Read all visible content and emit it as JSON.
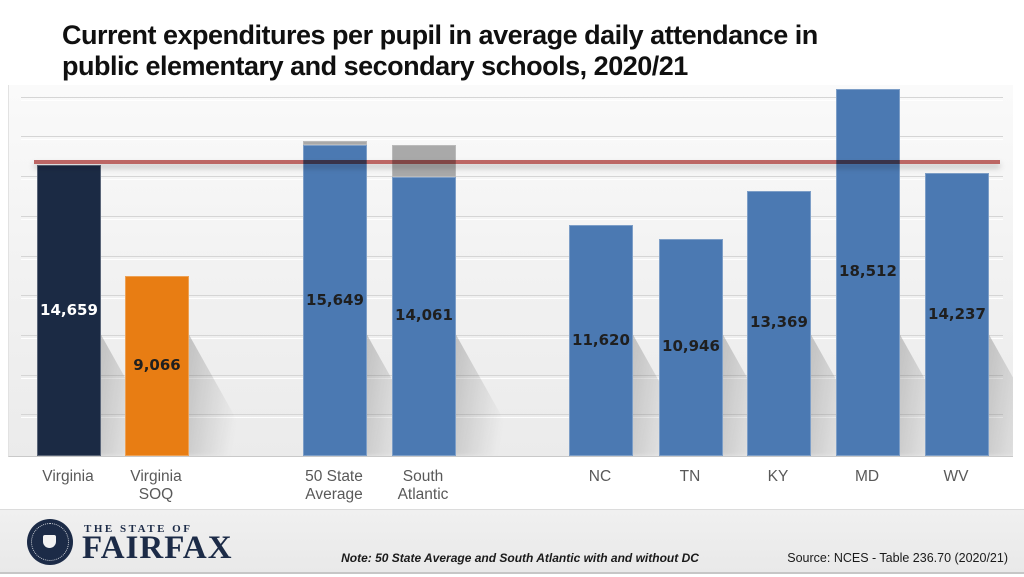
{
  "page": {
    "title": "Current expenditures per pupil in average daily attendance in\npublic elementary and secondary schools, 2020/21"
  },
  "chart_data": {
    "type": "bar",
    "title": "Current expenditures per pupil in average daily attendance in public elementary and secondary schools, 2020/21",
    "unit": "dollars per pupil",
    "categories": [
      "Virginia",
      "Virginia SOQ",
      "50 State Average",
      "South Atlantic",
      "NC",
      "TN",
      "KY",
      "MD",
      "WV"
    ],
    "category_display_lines": [
      [
        "Virginia"
      ],
      [
        "Virginia",
        "SOQ"
      ],
      [
        "50 State",
        "Average"
      ],
      [
        "South",
        "Atlantic"
      ],
      [
        "NC"
      ],
      [
        "TN"
      ],
      [
        "KY"
      ],
      [
        "MD"
      ],
      [
        "WV"
      ]
    ],
    "values": [
      14659,
      9066,
      15649,
      14061,
      11620,
      10946,
      13369,
      18512,
      14237
    ],
    "value_labels": [
      "14,659",
      "9,066",
      "15,649",
      "14,061",
      "11,620",
      "10,946",
      "13,369",
      "18,512",
      "14,237"
    ],
    "bar_colors": [
      "#1b2a44",
      "#e87d13",
      "#4b79b2",
      "#4b79b2",
      "#4b79b2",
      "#4b79b2",
      "#4b79b2",
      "#4b79b2",
      "#4b79b2"
    ],
    "value_label_colors": [
      "#ffffff",
      "#1f1f1f",
      "#1f1f1f",
      "#1f1f1f",
      "#1f1f1f",
      "#1f1f1f",
      "#1f1f1f",
      "#1f1f1f",
      "#1f1f1f"
    ],
    "with_dc_overlay": [
      {
        "category": "50 State Average",
        "top_value_estimate": 15850,
        "color": "#a9a9a9"
      },
      {
        "category": "South Atlantic",
        "top_value_estimate": 15680,
        "color": "#a9a9a9"
      }
    ],
    "reference_line": {
      "value_estimate": 14800,
      "color": "#bb5a57",
      "label": ""
    },
    "ylim": [
      0,
      18500
    ],
    "gridline_interval": 2000,
    "y_axis_labels_hidden": true,
    "legend": "none"
  },
  "footer": {
    "brand_top": "THE STATE OF",
    "brand_name": "FAIRFAX",
    "note": "Note: 50 State Average and South Atlantic with and without DC",
    "source": "Source: NCES - Table 236.70 (2020/21)"
  }
}
